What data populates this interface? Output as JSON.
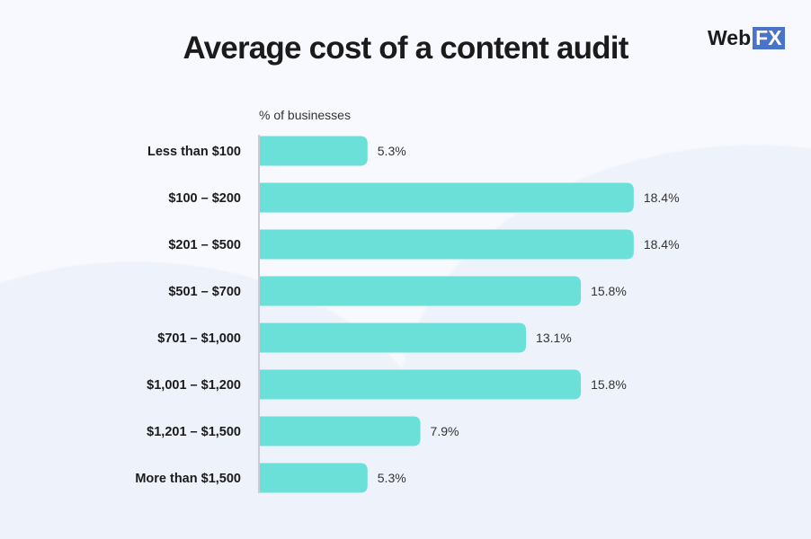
{
  "logo": {
    "text_main": "Web",
    "text_box": "FX"
  },
  "chart_data": {
    "type": "bar",
    "orientation": "horizontal",
    "title": "Average cost of a content audit",
    "xlabel": "% of businesses",
    "categories": [
      "Less than $100",
      "$100 – $200",
      "$201 – $500",
      "$501 – $700",
      "$701 – $1,000",
      "$1,001 – $1,200",
      "$1,201 – $1,500",
      "More than $1,500"
    ],
    "values": [
      5.3,
      18.4,
      18.4,
      15.8,
      13.1,
      15.8,
      7.9,
      5.3
    ],
    "data_labels": [
      "5.3%",
      "18.4%",
      "18.4%",
      "15.8%",
      "13.1%",
      "15.8%",
      "7.9%",
      "5.3%"
    ],
    "grid": false,
    "colors": {
      "bar": "#6be0d8",
      "axis": "#c9ccd6",
      "text": "#1b1b1b"
    }
  }
}
